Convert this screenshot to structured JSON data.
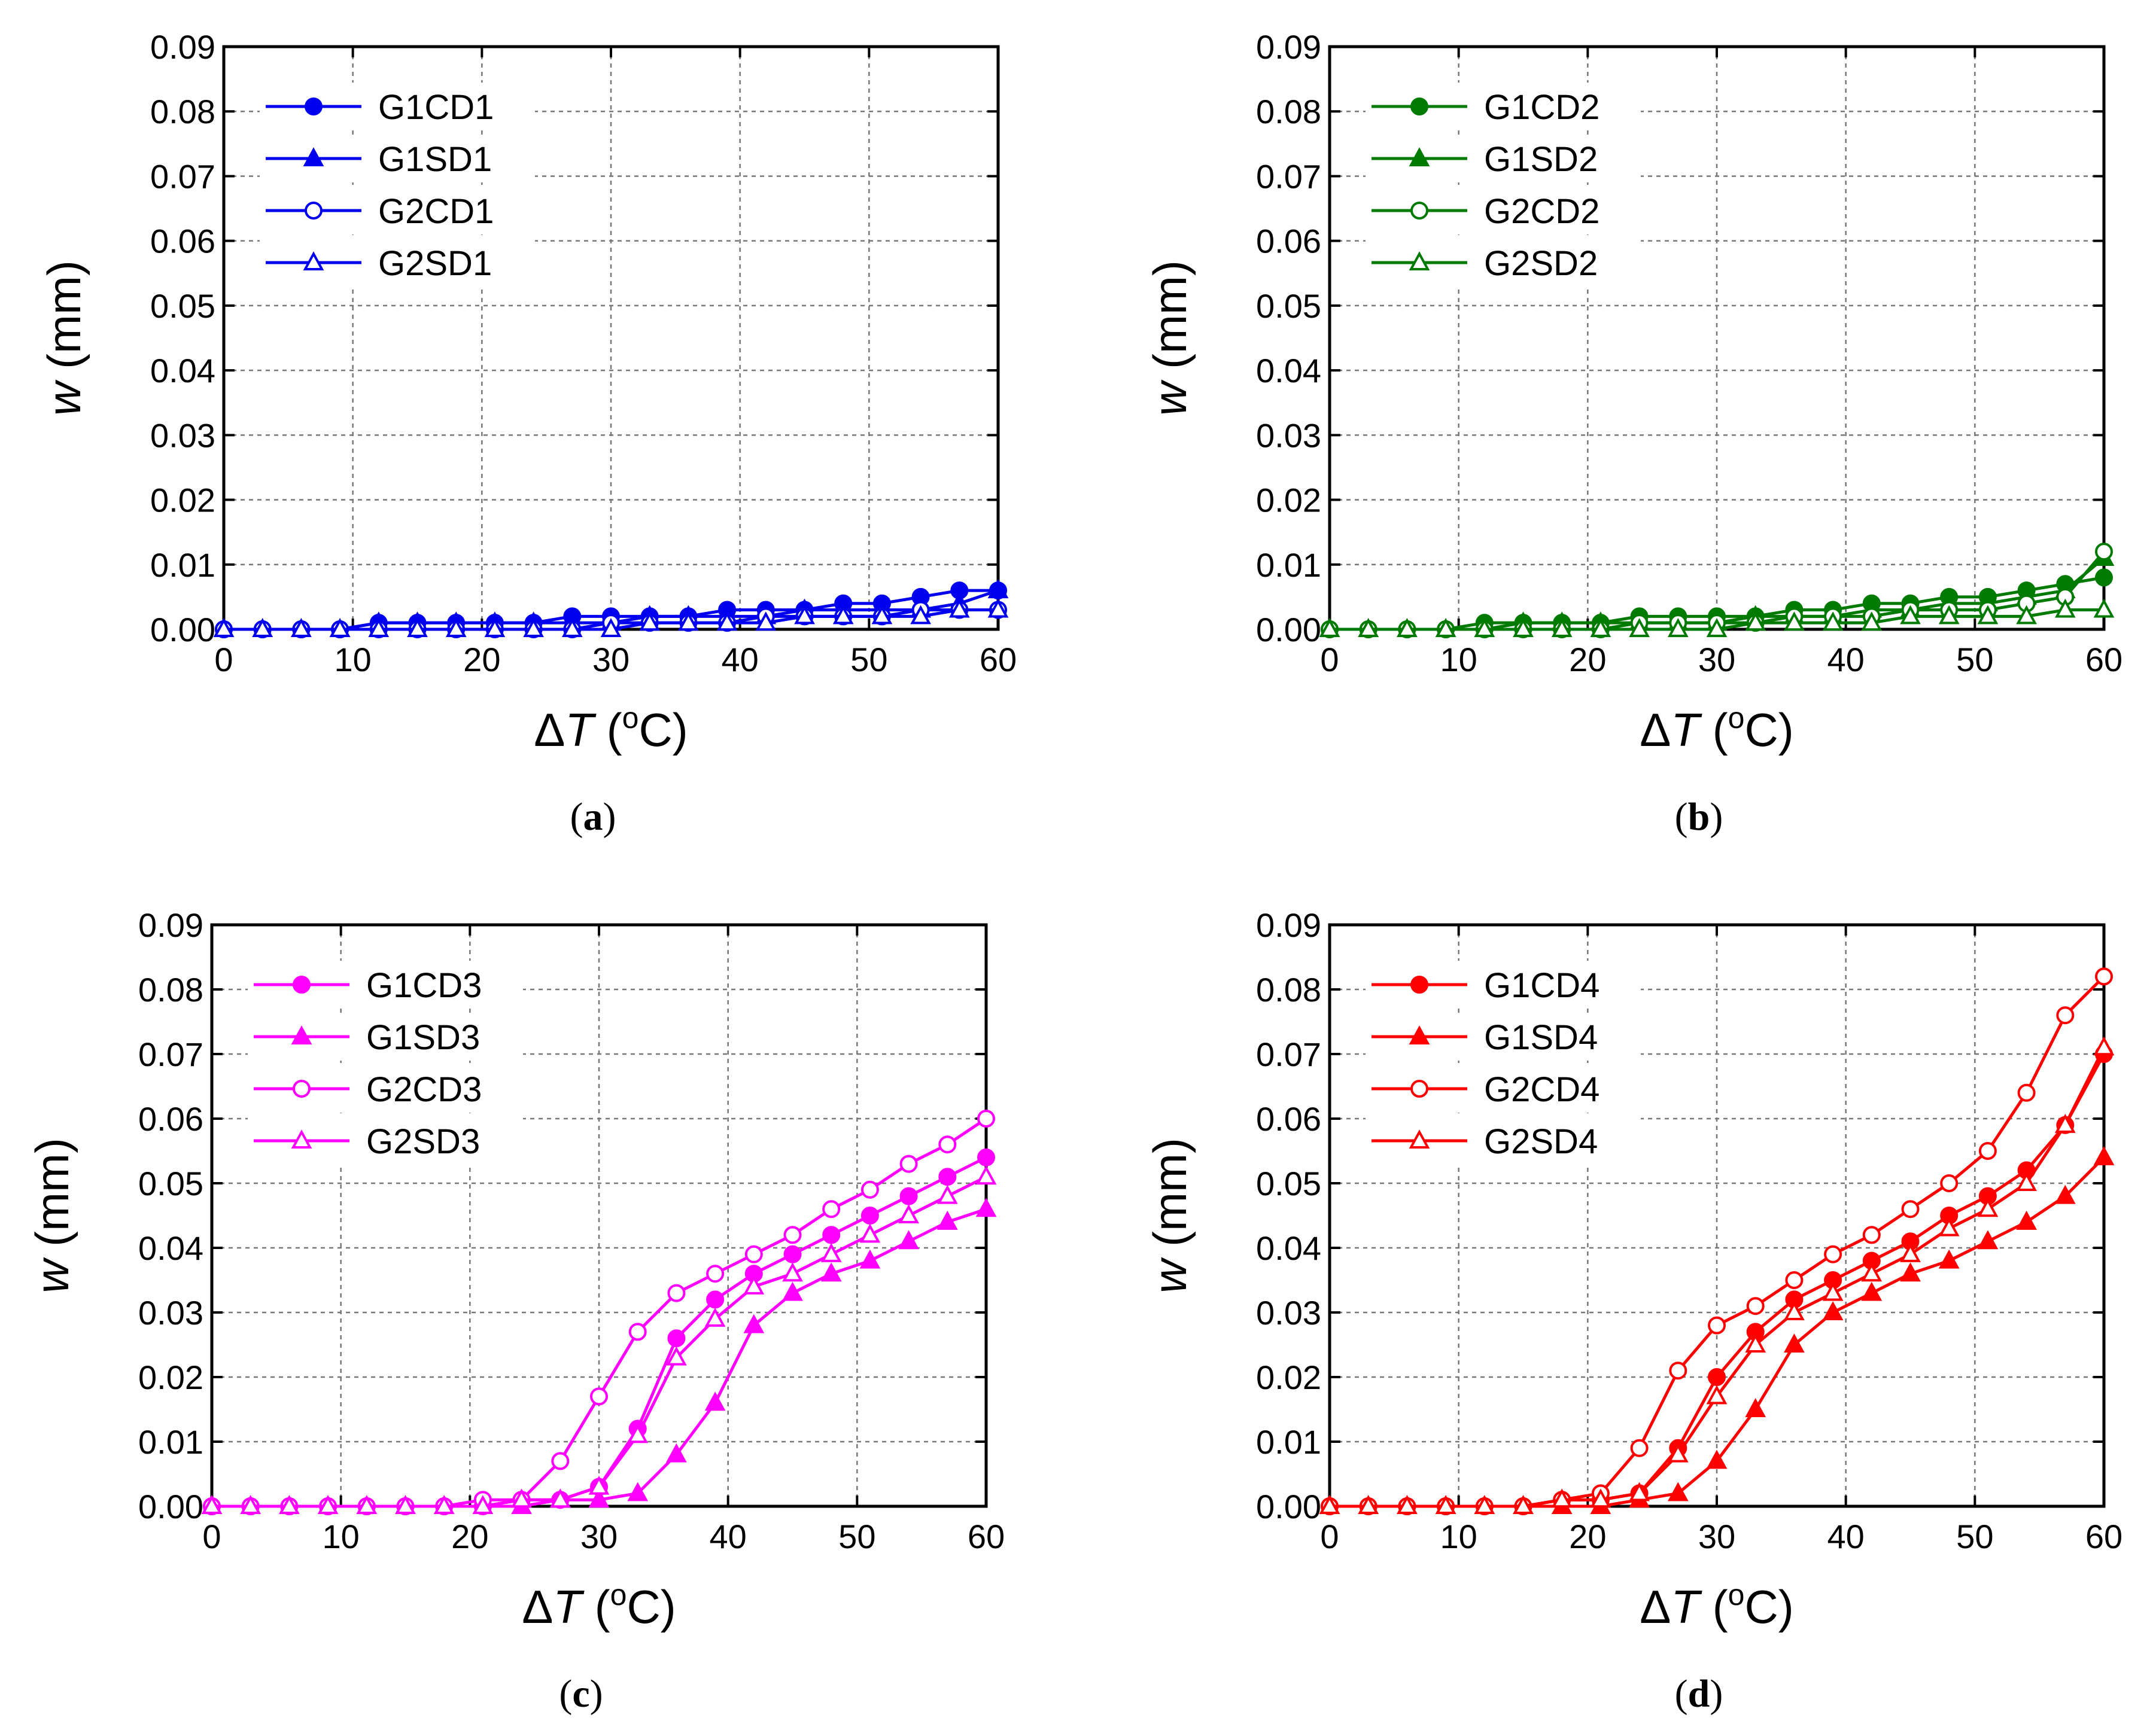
{
  "chart_data": [
    {
      "type": "line",
      "panel_label": "a",
      "color": "#0000ee",
      "xlabel_symbol": "ΔT",
      "xlabel_unit": "(oC)",
      "xlabel_open": "(",
      "xlabel_degree": "o",
      "xlabel_close": "C)",
      "ylabel_symbol": "w",
      "ylabel_unit": "(mm)",
      "xlim": [
        0,
        60
      ],
      "ylim": [
        0,
        0.09
      ],
      "x_ticks": [
        "0",
        "10",
        "20",
        "30",
        "40",
        "50",
        "60"
      ],
      "y_ticks": [
        "0.00",
        "0.01",
        "0.02",
        "0.03",
        "0.04",
        "0.05",
        "0.06",
        "0.07",
        "0.08",
        "0.09"
      ],
      "grid": true,
      "legend": "top-left",
      "x": [
        0,
        3,
        6,
        9,
        12,
        15,
        18,
        21,
        24,
        27,
        30,
        33,
        36,
        39,
        42,
        45,
        48,
        51,
        54,
        57,
        60
      ],
      "series": [
        {
          "name": "G1CD1",
          "marker": "circle",
          "filled": true,
          "values": [
            0,
            0,
            0,
            0,
            0.001,
            0.001,
            0.001,
            0.001,
            0.001,
            0.002,
            0.002,
            0.002,
            0.002,
            0.003,
            0.003,
            0.003,
            0.004,
            0.004,
            0.005,
            0.006,
            0.006
          ]
        },
        {
          "name": "G1SD1",
          "marker": "triangle",
          "filled": true,
          "values": [
            0,
            0,
            0,
            0,
            0.001,
            0.001,
            0.001,
            0.001,
            0.001,
            0.001,
            0.001,
            0.002,
            0.002,
            0.002,
            0.002,
            0.003,
            0.003,
            0.003,
            0.003,
            0.004,
            0.006
          ]
        },
        {
          "name": "G2CD1",
          "marker": "circle",
          "filled": false,
          "values": [
            0,
            0,
            0,
            0,
            0,
            0,
            0,
            0,
            0,
            0,
            0.001,
            0.001,
            0.001,
            0.001,
            0.002,
            0.002,
            0.002,
            0.002,
            0.003,
            0.003,
            0.003
          ]
        },
        {
          "name": "G2SD1",
          "marker": "triangle",
          "filled": false,
          "values": [
            0,
            0,
            0,
            0,
            0,
            0,
            0,
            0,
            0,
            0,
            0,
            0.001,
            0.001,
            0.001,
            0.001,
            0.002,
            0.002,
            0.002,
            0.002,
            0.003,
            0.003
          ]
        }
      ]
    },
    {
      "type": "line",
      "panel_label": "b",
      "color": "#007a00",
      "xlabel_symbol": "ΔT",
      "xlabel_unit": "(oC)",
      "xlabel_open": "(",
      "xlabel_degree": "o",
      "xlabel_close": "C)",
      "ylabel_symbol": "w",
      "ylabel_unit": "(mm)",
      "xlim": [
        0,
        60
      ],
      "ylim": [
        0,
        0.09
      ],
      "x_ticks": [
        "0",
        "10",
        "20",
        "30",
        "40",
        "50",
        "60"
      ],
      "y_ticks": [
        "0.00",
        "0.01",
        "0.02",
        "0.03",
        "0.04",
        "0.05",
        "0.06",
        "0.07",
        "0.08",
        "0.09"
      ],
      "grid": true,
      "legend": "top-left",
      "x": [
        0,
        3,
        6,
        9,
        12,
        15,
        18,
        21,
        24,
        27,
        30,
        33,
        36,
        39,
        42,
        45,
        48,
        51,
        54,
        57,
        60
      ],
      "series": [
        {
          "name": "G1CD2",
          "marker": "circle",
          "filled": true,
          "values": [
            0,
            0,
            0,
            0,
            0.001,
            0.001,
            0.001,
            0.001,
            0.002,
            0.002,
            0.002,
            0.002,
            0.003,
            0.003,
            0.004,
            0.004,
            0.005,
            0.005,
            0.006,
            0.007,
            0.008
          ]
        },
        {
          "name": "G1SD2",
          "marker": "triangle",
          "filled": true,
          "values": [
            0,
            0,
            0,
            0,
            0,
            0.001,
            0.001,
            0.001,
            0.001,
            0.001,
            0.001,
            0.002,
            0.002,
            0.002,
            0.003,
            0.003,
            0.004,
            0.004,
            0.005,
            0.006,
            0.011
          ]
        },
        {
          "name": "G2CD2",
          "marker": "circle",
          "filled": false,
          "values": [
            0,
            0,
            0,
            0,
            0,
            0,
            0,
            0,
            0.001,
            0.001,
            0.001,
            0.001,
            0.002,
            0.002,
            0.002,
            0.003,
            0.003,
            0.003,
            0.004,
            0.005,
            0.012
          ]
        },
        {
          "name": "G2SD2",
          "marker": "triangle",
          "filled": false,
          "values": [
            0,
            0,
            0,
            0,
            0,
            0,
            0,
            0,
            0,
            0,
            0,
            0.001,
            0.001,
            0.001,
            0.001,
            0.002,
            0.002,
            0.002,
            0.002,
            0.003,
            0.003
          ]
        }
      ]
    },
    {
      "type": "line",
      "panel_label": "c",
      "color": "#ff00ff",
      "xlabel_symbol": "ΔT",
      "xlabel_unit": "(oC)",
      "xlabel_open": "(",
      "xlabel_degree": "o",
      "xlabel_close": "C)",
      "ylabel_symbol": "w",
      "ylabel_unit": "(mm)",
      "xlim": [
        0,
        60
      ],
      "ylim": [
        0,
        0.09
      ],
      "x_ticks": [
        "0",
        "10",
        "20",
        "30",
        "40",
        "50",
        "60"
      ],
      "y_ticks": [
        "0.00",
        "0.01",
        "0.02",
        "0.03",
        "0.04",
        "0.05",
        "0.06",
        "0.07",
        "0.08",
        "0.09"
      ],
      "grid": true,
      "legend": "top-left",
      "x": [
        0,
        3,
        6,
        9,
        12,
        15,
        18,
        21,
        24,
        27,
        30,
        33,
        36,
        39,
        42,
        45,
        48,
        51,
        54,
        57,
        60
      ],
      "series": [
        {
          "name": "G1CD3",
          "marker": "circle",
          "filled": true,
          "values": [
            0,
            0,
            0,
            0,
            0,
            0,
            0,
            0,
            0.001,
            0.001,
            0.003,
            0.012,
            0.026,
            0.032,
            0.036,
            0.039,
            0.042,
            0.045,
            0.048,
            0.051,
            0.054
          ]
        },
        {
          "name": "G1SD3",
          "marker": "triangle",
          "filled": true,
          "values": [
            0,
            0,
            0,
            0,
            0,
            0,
            0,
            0,
            0,
            0.001,
            0.001,
            0.002,
            0.008,
            0.016,
            0.028,
            0.033,
            0.036,
            0.038,
            0.041,
            0.044,
            0.046
          ]
        },
        {
          "name": "G2CD3",
          "marker": "circle",
          "filled": false,
          "values": [
            0,
            0,
            0,
            0,
            0,
            0,
            0,
            0.001,
            0.001,
            0.007,
            0.017,
            0.027,
            0.033,
            0.036,
            0.039,
            0.042,
            0.046,
            0.049,
            0.053,
            0.056,
            0.06
          ]
        },
        {
          "name": "G2SD3",
          "marker": "triangle",
          "filled": false,
          "values": [
            0,
            0,
            0,
            0,
            0,
            0,
            0,
            0,
            0.001,
            0.001,
            0.003,
            0.011,
            0.023,
            0.029,
            0.034,
            0.036,
            0.039,
            0.042,
            0.045,
            0.048,
            0.051
          ]
        }
      ]
    },
    {
      "type": "line",
      "panel_label": "d",
      "color": "#ff0000",
      "xlabel_symbol": "ΔT",
      "xlabel_unit": "(oC)",
      "xlabel_open": "(",
      "xlabel_degree": "o",
      "xlabel_close": "C)",
      "ylabel_symbol": "w",
      "ylabel_unit": "(mm)",
      "xlim": [
        0,
        60
      ],
      "ylim": [
        0,
        0.09
      ],
      "x_ticks": [
        "0",
        "10",
        "20",
        "30",
        "40",
        "50",
        "60"
      ],
      "y_ticks": [
        "0.00",
        "0.01",
        "0.02",
        "0.03",
        "0.04",
        "0.05",
        "0.06",
        "0.07",
        "0.08",
        "0.09"
      ],
      "grid": true,
      "legend": "top-left",
      "x": [
        0,
        3,
        6,
        9,
        12,
        15,
        18,
        21,
        24,
        27,
        30,
        33,
        36,
        39,
        42,
        45,
        48,
        51,
        54,
        57,
        60
      ],
      "series": [
        {
          "name": "G1CD4",
          "marker": "circle",
          "filled": true,
          "values": [
            0,
            0,
            0,
            0,
            0,
            0,
            0.001,
            0.001,
            0.002,
            0.009,
            0.02,
            0.027,
            0.032,
            0.035,
            0.038,
            0.041,
            0.045,
            0.048,
            0.052,
            0.059,
            0.07
          ]
        },
        {
          "name": "G1SD4",
          "marker": "triangle",
          "filled": true,
          "values": [
            0,
            0,
            0,
            0,
            0,
            0,
            0,
            0,
            0.001,
            0.002,
            0.007,
            0.015,
            0.025,
            0.03,
            0.033,
            0.036,
            0.038,
            0.041,
            0.044,
            0.048,
            0.054
          ]
        },
        {
          "name": "G2CD4",
          "marker": "circle",
          "filled": false,
          "values": [
            0,
            0,
            0,
            0,
            0,
            0,
            0.001,
            0.002,
            0.009,
            0.021,
            0.028,
            0.031,
            0.035,
            0.039,
            0.042,
            0.046,
            0.05,
            0.055,
            0.064,
            0.076,
            0.082
          ]
        },
        {
          "name": "G2SD4",
          "marker": "triangle",
          "filled": false,
          "values": [
            0,
            0,
            0,
            0,
            0,
            0,
            0.001,
            0.001,
            0.002,
            0.008,
            0.017,
            0.025,
            0.03,
            0.033,
            0.036,
            0.039,
            0.043,
            0.046,
            0.05,
            0.059,
            0.071
          ]
        }
      ]
    }
  ]
}
